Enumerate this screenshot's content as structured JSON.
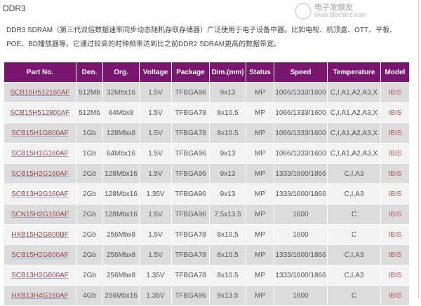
{
  "title": "DDR3",
  "intro": "DDR3 SDRAM（第三代双倍数据速率同步动态随机存取存储器）广泛使用于电子设备中器。比如电视、机顶盒、OTT、平板、POE、BD播放器等。它通过较高的时钟频率达到比之前DDR2 SDRAM更高的数据带宽。",
  "table": {
    "headers": [
      "Part No.",
      "Den.",
      "Org.",
      "Voltage",
      "Package",
      "Dim.(mm)",
      "Status",
      "Speed",
      "Temperature",
      "Model"
    ],
    "rows": [
      [
        "SCB15H512160AF",
        "512Mb",
        "32Mbx16",
        "1.5V",
        "TFBGA96",
        "9x13",
        "MP",
        "1066/1333/1600",
        "C,I,A1,A2,A3,X",
        "IBIS"
      ],
      [
        "SCB15H512800AF",
        "512Mb",
        "64Mbx8",
        "1.5V",
        "TFBGA78",
        "8x10.5",
        "MP",
        "1066/1333/1600",
        "C,I,A1,A2,A3,X",
        "IBIS"
      ],
      [
        "SCB15H1G800AF",
        "1Gb",
        "128Mbx8",
        "1.5V",
        "TFBGA78",
        "8x10.5",
        "MP",
        "1066/1333/1600",
        "C,I,A1,A2,A3,X",
        "IBIS"
      ],
      [
        "SCB15H1G160AF",
        "1Gb",
        "64Mbx16",
        "1.5V",
        "TFBGA96",
        "9x13",
        "MP",
        "1066/1333/1600",
        "C,I,A1,A2,A3,X",
        "IBIS"
      ],
      [
        "SCB15H2G160AF",
        "2Gb",
        "128Mbx16",
        "1.5V",
        "TFBGA96",
        "9x13",
        "MP",
        "1333/1600/1866",
        "C,I,A3",
        "IBIS"
      ],
      [
        "SCB13H2G160AF",
        "2Gb",
        "128Mbx16",
        "1.35V",
        "TFBGA96",
        "9x13",
        "MP",
        "1333/1600/1866",
        "C,I,A3",
        "IBIS"
      ],
      [
        "SCN15H2G160AF",
        "2Gb",
        "128Mbx16",
        "1.5V",
        "TFBGA96",
        "7.5x13.5",
        "MP",
        "1600",
        "C",
        "IBIS"
      ],
      [
        "HXB15H2G800BF",
        "2Gb",
        "256Mbx8",
        "1.5V",
        "TFBGA78",
        "8x10.5",
        "MP",
        "1600",
        "C",
        "IBIS"
      ],
      [
        "SCB15H2G800AF",
        "2Gb",
        "256Mbx8",
        "1.5V",
        "TFBGA78",
        "8x10.5",
        "MP",
        "1333/1600/1866",
        "C,I,A3",
        "IBIS"
      ],
      [
        "SCB13H2G800AF",
        "2Gb",
        "256Mbx8",
        "1.35V",
        "TFBGA78",
        "8x10.5",
        "MP",
        "1333/1600/1866",
        "C,I,A3",
        "IBIS"
      ],
      [
        "HXB13H4G160AF",
        "4Gb",
        "256Mbx16",
        "1.35V",
        "TFBGA96",
        "9x13.5",
        "MP",
        "1600",
        "C",
        "IBIS"
      ]
    ]
  },
  "watermark": {
    "cn": "电子发烧友",
    "url": "www.elecfans.com"
  },
  "colors": {
    "header": "#7a1570",
    "part_link": "#a04552"
  }
}
